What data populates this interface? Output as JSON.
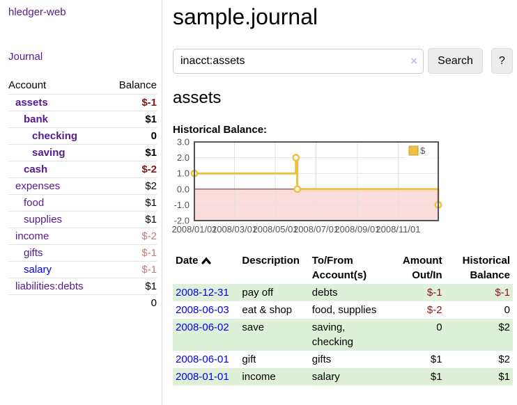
{
  "app": {
    "brand": "hledger-web",
    "nav_journal": "Journal"
  },
  "sidebar": {
    "header": {
      "account": "Account",
      "balance": "Balance"
    },
    "accounts": [
      {
        "name": "assets",
        "balance": "$-1"
      },
      {
        "name": "bank",
        "balance": "$1"
      },
      {
        "name": "checking",
        "balance": "0"
      },
      {
        "name": "saving",
        "balance": "$1"
      },
      {
        "name": "cash",
        "balance": "$-2"
      },
      {
        "name": "expenses",
        "balance": "$2"
      },
      {
        "name": "food",
        "balance": "$1"
      },
      {
        "name": "supplies",
        "balance": "$1"
      },
      {
        "name": "income",
        "balance": "$-2"
      },
      {
        "name": "gifts",
        "balance": "$-1"
      },
      {
        "name": "salary",
        "balance": "$-1"
      },
      {
        "name": "liabilities:debts",
        "balance": "$1"
      }
    ],
    "total": "0"
  },
  "header": {
    "title": "sample.journal"
  },
  "search": {
    "value": "inacct:assets",
    "clear_icon": "×",
    "button_label": "Search",
    "help_label": "?"
  },
  "account_page": {
    "heading": "assets",
    "section_label": "Historical Balance:"
  },
  "chart_data": {
    "type": "line",
    "step": true,
    "title": "Historical Balance",
    "x_range": [
      "2008-01-01",
      "2008-12-31"
    ],
    "ylim": [
      -2,
      3
    ],
    "y_ticks": [
      {
        "label": "3.0",
        "value": 3
      },
      {
        "label": "2.0",
        "value": 2
      },
      {
        "label": "1.0",
        "value": 1
      },
      {
        "label": "0.0",
        "value": 0
      },
      {
        "label": "-1.0",
        "value": -1
      },
      {
        "label": "-2.0",
        "value": -2
      }
    ],
    "x_ticks": [
      {
        "label": "2008/01/01",
        "date": "2008-01-01"
      },
      {
        "label": "2008/03/01",
        "date": "2008-03-01"
      },
      {
        "label": "2008/05/01",
        "date": "2008-05-01"
      },
      {
        "label": "2008/07/01",
        "date": "2008-07-01"
      },
      {
        "label": "2008/09/01",
        "date": "2008-09-01"
      },
      {
        "label": "2008/11/01",
        "date": "2008-11-01"
      }
    ],
    "series": [
      {
        "name": "$",
        "color": "#edc240",
        "points": [
          {
            "date": "2008-01-01",
            "value": 1
          },
          {
            "date": "2008-06-01",
            "value": 2
          },
          {
            "date": "2008-06-03",
            "value": 0
          },
          {
            "date": "2008-12-31",
            "value": -1
          }
        ]
      }
    ],
    "legend": {
      "label": "$",
      "swatch_color": "#edc240",
      "position": "top-right"
    },
    "negative_fill": "#fbdcdc",
    "zero_line_color": "#8b1a1a",
    "grid_color": "#e0e0e0",
    "border_color": "#545454",
    "label_color": "#545454",
    "grid_on": true
  },
  "register": {
    "columns": {
      "date": "Date",
      "description": "Description",
      "tofrom_line1": "To/From",
      "tofrom_line2": "Account(s)",
      "amount_line1": "Amount",
      "amount_line2": "Out/In",
      "balance_line1": "Historical",
      "balance_line2": "Balance"
    },
    "sort_icon": "chevron-up",
    "rows": [
      {
        "date": "2008-12-31",
        "description": "pay off",
        "accounts": "debts",
        "amount": "$-1",
        "balance": "$-1"
      },
      {
        "date": "2008-06-03",
        "description": "eat & shop",
        "accounts": "food, supplies",
        "amount": "$-2",
        "balance": "0"
      },
      {
        "date": "2008-06-02",
        "description": "save",
        "accounts": "saving, checking",
        "amount": "0",
        "balance": "$2"
      },
      {
        "date": "2008-06-01",
        "description": "gift",
        "accounts": "gifts",
        "amount": "$1",
        "balance": "$2"
      },
      {
        "date": "2008-01-01",
        "description": "income",
        "accounts": "salary",
        "amount": "$1",
        "balance": "$1"
      }
    ]
  },
  "colors": {
    "purple_link": "#551a8b",
    "blue_link": "#0000ee",
    "negative": "#8b1414",
    "negative_muted": "#bf7b7b",
    "row_stripe": "#dff0d8"
  }
}
